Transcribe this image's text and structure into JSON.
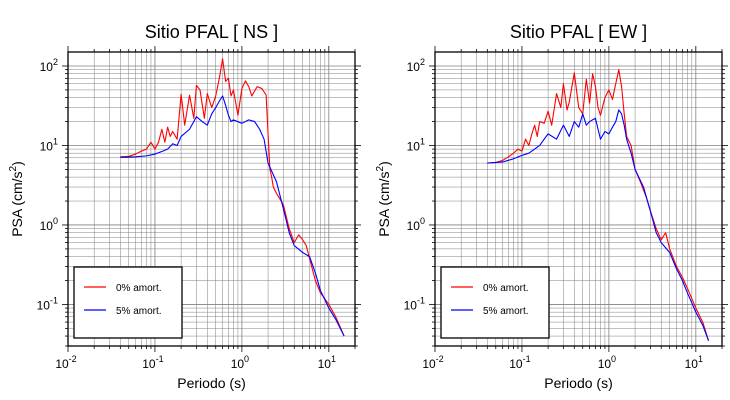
{
  "colors": {
    "undamped": "#ff0000",
    "damped": "#0000ff",
    "grid": "#808080",
    "frame": "#000000"
  },
  "chart_data": [
    {
      "type": "line",
      "title": "Sitio PFAL [ NS ]",
      "xlabel": "Periodo (s)",
      "ylabel_main": "PSA (cm/s",
      "ylabel_sup": "2",
      "ylabel_tail": ")",
      "xscale": "log",
      "yscale": "log",
      "xlim": [
        0.01,
        20
      ],
      "ylim": [
        0.03,
        150
      ],
      "grid": true,
      "legend_position": "bottom-left",
      "x_ticks": [
        {
          "base": "10",
          "exp": "-2",
          "value": 0.01
        },
        {
          "base": "10",
          "exp": "-1",
          "value": 0.1
        },
        {
          "base": "10",
          "exp": "0",
          "value": 1
        },
        {
          "base": "10",
          "exp": "1",
          "value": 10
        }
      ],
      "y_ticks": [
        {
          "base": "10",
          "exp": "-1",
          "value": 0.1
        },
        {
          "base": "10",
          "exp": "0",
          "value": 1
        },
        {
          "base": "10",
          "exp": "1",
          "value": 10
        },
        {
          "base": "10",
          "exp": "2",
          "value": 100
        }
      ],
      "series": [
        {
          "name": "0% amort.",
          "color": "#ff0000",
          "points": [
            [
              0.04,
              7.2
            ],
            [
              0.05,
              7.3
            ],
            [
              0.06,
              7.8
            ],
            [
              0.07,
              8.5
            ],
            [
              0.08,
              9
            ],
            [
              0.09,
              11
            ],
            [
              0.1,
              9
            ],
            [
              0.11,
              11
            ],
            [
              0.12,
              16
            ],
            [
              0.13,
              11
            ],
            [
              0.14,
              17
            ],
            [
              0.15,
              13
            ],
            [
              0.16,
              15
            ],
            [
              0.18,
              12
            ],
            [
              0.2,
              44
            ],
            [
              0.22,
              18
            ],
            [
              0.25,
              43
            ],
            [
              0.28,
              22
            ],
            [
              0.3,
              57
            ],
            [
              0.33,
              50
            ],
            [
              0.37,
              22
            ],
            [
              0.4,
              45
            ],
            [
              0.45,
              30
            ],
            [
              0.5,
              42
            ],
            [
              0.55,
              70
            ],
            [
              0.6,
              123
            ],
            [
              0.65,
              64
            ],
            [
              0.7,
              70
            ],
            [
              0.75,
              42
            ],
            [
              0.8,
              50
            ],
            [
              0.9,
              24
            ],
            [
              1.0,
              52
            ],
            [
              1.1,
              65
            ],
            [
              1.2,
              55
            ],
            [
              1.3,
              42
            ],
            [
              1.5,
              55
            ],
            [
              1.7,
              52
            ],
            [
              1.9,
              43
            ],
            [
              2.0,
              14
            ],
            [
              2.1,
              5
            ],
            [
              2.2,
              4
            ],
            [
              2.3,
              3
            ],
            [
              2.5,
              2.5
            ],
            [
              3.0,
              1.8
            ],
            [
              3.5,
              0.9
            ],
            [
              4.0,
              0.6
            ],
            [
              4.5,
              0.75
            ],
            [
              5.0,
              0.65
            ],
            [
              5.5,
              0.55
            ],
            [
              6.0,
              0.38
            ],
            [
              7.0,
              0.2
            ],
            [
              8.0,
              0.14
            ],
            [
              10.0,
              0.1
            ],
            [
              12.0,
              0.07
            ],
            [
              15.0,
              0.04
            ]
          ]
        },
        {
          "name": "5% amort.",
          "color": "#0000ff",
          "points": [
            [
              0.04,
              7.1
            ],
            [
              0.06,
              7.2
            ],
            [
              0.08,
              7.4
            ],
            [
              0.1,
              7.8
            ],
            [
              0.12,
              8.4
            ],
            [
              0.14,
              9
            ],
            [
              0.16,
              10.5
            ],
            [
              0.18,
              10
            ],
            [
              0.2,
              13
            ],
            [
              0.25,
              16
            ],
            [
              0.3,
              23
            ],
            [
              0.35,
              20
            ],
            [
              0.4,
              18
            ],
            [
              0.45,
              25
            ],
            [
              0.5,
              30
            ],
            [
              0.55,
              36
            ],
            [
              0.6,
              42
            ],
            [
              0.65,
              32
            ],
            [
              0.7,
              24
            ],
            [
              0.75,
              20
            ],
            [
              0.8,
              21
            ],
            [
              1.0,
              19
            ],
            [
              1.2,
              21
            ],
            [
              1.4,
              20
            ],
            [
              1.6,
              16
            ],
            [
              1.8,
              12
            ],
            [
              2.0,
              6
            ],
            [
              2.5,
              3.5
            ],
            [
              3.0,
              1.6
            ],
            [
              3.5,
              0.8
            ],
            [
              4.0,
              0.55
            ],
            [
              5.0,
              0.45
            ],
            [
              6.0,
              0.4
            ],
            [
              7.0,
              0.25
            ],
            [
              8.0,
              0.15
            ],
            [
              10.0,
              0.09
            ],
            [
              12.0,
              0.065
            ],
            [
              15.0,
              0.04
            ]
          ]
        }
      ]
    },
    {
      "type": "line",
      "title": "Sitio PFAL [ EW ]",
      "xlabel": "Periodo (s)",
      "ylabel_main": "PSA (cm/s",
      "ylabel_sup": "2",
      "ylabel_tail": ")",
      "xscale": "log",
      "yscale": "log",
      "xlim": [
        0.01,
        20
      ],
      "ylim": [
        0.03,
        150
      ],
      "grid": true,
      "legend_position": "bottom-left",
      "x_ticks": [
        {
          "base": "10",
          "exp": "-2",
          "value": 0.01
        },
        {
          "base": "10",
          "exp": "-1",
          "value": 0.1
        },
        {
          "base": "10",
          "exp": "0",
          "value": 1
        },
        {
          "base": "10",
          "exp": "1",
          "value": 10
        }
      ],
      "y_ticks": [
        {
          "base": "10",
          "exp": "-1",
          "value": 0.1
        },
        {
          "base": "10",
          "exp": "0",
          "value": 1
        },
        {
          "base": "10",
          "exp": "1",
          "value": 10
        },
        {
          "base": "10",
          "exp": "2",
          "value": 100
        }
      ],
      "series": [
        {
          "name": "0% amort.",
          "color": "#ff0000",
          "points": [
            [
              0.04,
              6.0
            ],
            [
              0.05,
              6.1
            ],
            [
              0.06,
              6.5
            ],
            [
              0.07,
              7.2
            ],
            [
              0.08,
              8
            ],
            [
              0.09,
              9
            ],
            [
              0.1,
              8.5
            ],
            [
              0.11,
              12
            ],
            [
              0.12,
              10
            ],
            [
              0.13,
              14
            ],
            [
              0.14,
              18
            ],
            [
              0.15,
              13
            ],
            [
              0.16,
              20
            ],
            [
              0.18,
              19
            ],
            [
              0.2,
              27
            ],
            [
              0.22,
              18
            ],
            [
              0.25,
              45
            ],
            [
              0.28,
              30
            ],
            [
              0.3,
              60
            ],
            [
              0.33,
              28
            ],
            [
              0.35,
              35
            ],
            [
              0.4,
              82
            ],
            [
              0.45,
              30
            ],
            [
              0.5,
              25
            ],
            [
              0.55,
              68
            ],
            [
              0.6,
              34
            ],
            [
              0.65,
              80
            ],
            [
              0.7,
              55
            ],
            [
              0.75,
              30
            ],
            [
              0.8,
              24
            ],
            [
              0.9,
              40
            ],
            [
              1.0,
              50
            ],
            [
              1.1,
              38
            ],
            [
              1.2,
              60
            ],
            [
              1.3,
              90
            ],
            [
              1.4,
              55
            ],
            [
              1.5,
              25
            ],
            [
              1.6,
              13
            ],
            [
              1.8,
              10
            ],
            [
              2.0,
              5
            ],
            [
              2.3,
              3.5
            ],
            [
              2.7,
              2.2
            ],
            [
              3.0,
              1.5
            ],
            [
              3.5,
              0.9
            ],
            [
              4.0,
              0.65
            ],
            [
              4.5,
              0.8
            ],
            [
              5.0,
              0.5
            ],
            [
              6.0,
              0.3
            ],
            [
              7.0,
              0.22
            ],
            [
              8.0,
              0.16
            ],
            [
              10.0,
              0.09
            ],
            [
              12.0,
              0.06
            ],
            [
              14.0,
              0.035
            ]
          ]
        },
        {
          "name": "5% amort.",
          "color": "#0000ff",
          "points": [
            [
              0.04,
              6.0
            ],
            [
              0.06,
              6.2
            ],
            [
              0.08,
              6.8
            ],
            [
              0.1,
              7.5
            ],
            [
              0.12,
              8
            ],
            [
              0.14,
              9
            ],
            [
              0.16,
              10
            ],
            [
              0.18,
              12
            ],
            [
              0.2,
              14
            ],
            [
              0.25,
              12
            ],
            [
              0.3,
              18
            ],
            [
              0.35,
              13
            ],
            [
              0.4,
              20
            ],
            [
              0.45,
              17
            ],
            [
              0.5,
              25
            ],
            [
              0.55,
              18
            ],
            [
              0.6,
              20
            ],
            [
              0.7,
              22
            ],
            [
              0.8,
              12
            ],
            [
              0.9,
              15
            ],
            [
              1.0,
              14
            ],
            [
              1.1,
              17
            ],
            [
              1.2,
              20
            ],
            [
              1.3,
              28
            ],
            [
              1.4,
              25
            ],
            [
              1.5,
              18
            ],
            [
              1.6,
              12
            ],
            [
              1.8,
              8
            ],
            [
              2.0,
              5
            ],
            [
              2.5,
              3
            ],
            [
              3.0,
              1.5
            ],
            [
              3.5,
              0.8
            ],
            [
              4.0,
              0.6
            ],
            [
              5.0,
              0.45
            ],
            [
              6.0,
              0.28
            ],
            [
              7.0,
              0.2
            ],
            [
              8.0,
              0.14
            ],
            [
              10.0,
              0.08
            ],
            [
              12.0,
              0.055
            ],
            [
              14.0,
              0.035
            ]
          ]
        }
      ]
    }
  ]
}
